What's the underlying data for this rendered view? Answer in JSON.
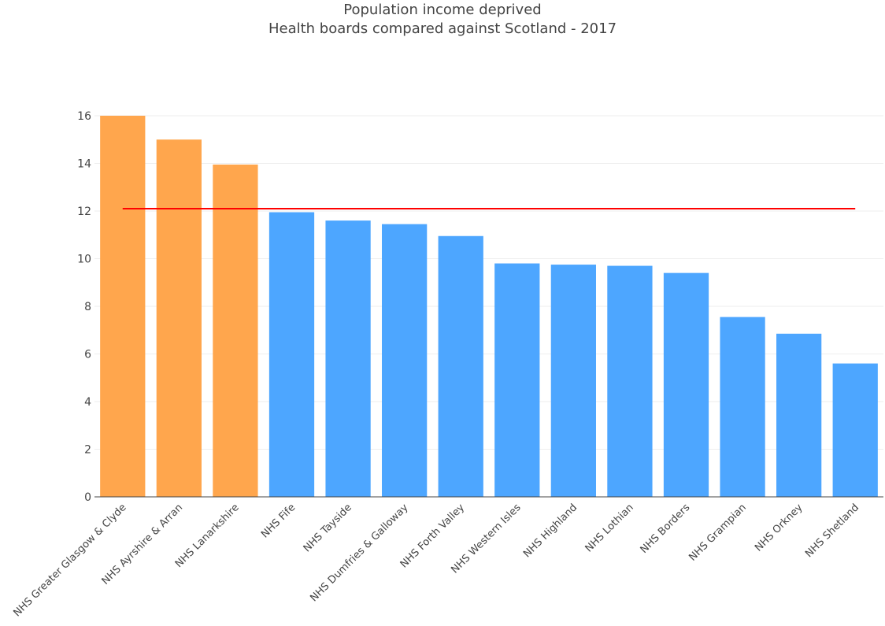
{
  "chart_data": {
    "type": "bar",
    "title": "Population income deprived",
    "subtitle": "Health boards compared against Scotland - 2017",
    "xlabel": "",
    "ylabel": "",
    "ylim": [
      0,
      16
    ],
    "yticks": [
      0,
      2,
      4,
      6,
      8,
      10,
      12,
      14,
      16
    ],
    "grid": true,
    "categories": [
      "NHS Greater Glasgow & Clyde",
      "NHS Ayrshire & Arran",
      "NHS Lanarkshire",
      "NHS Fife",
      "NHS Tayside",
      "NHS Dumfries & Galloway",
      "NHS Forth Valley",
      "NHS Western Isles",
      "NHS Highland",
      "NHS Lothian",
      "NHS Borders",
      "NHS Grampian",
      "NHS Orkney",
      "NHS Shetland"
    ],
    "values": [
      16.0,
      15.0,
      13.95,
      11.95,
      11.6,
      11.45,
      10.95,
      9.8,
      9.75,
      9.7,
      9.4,
      7.55,
      6.85,
      5.6
    ],
    "scotland_reference": 12.1,
    "colors": {
      "above_scotland": "#ffa64d",
      "below_scotland": "#4da6ff",
      "reference_line": "#ff0000",
      "grid": "#eeeeee",
      "axis": "#444444"
    }
  }
}
